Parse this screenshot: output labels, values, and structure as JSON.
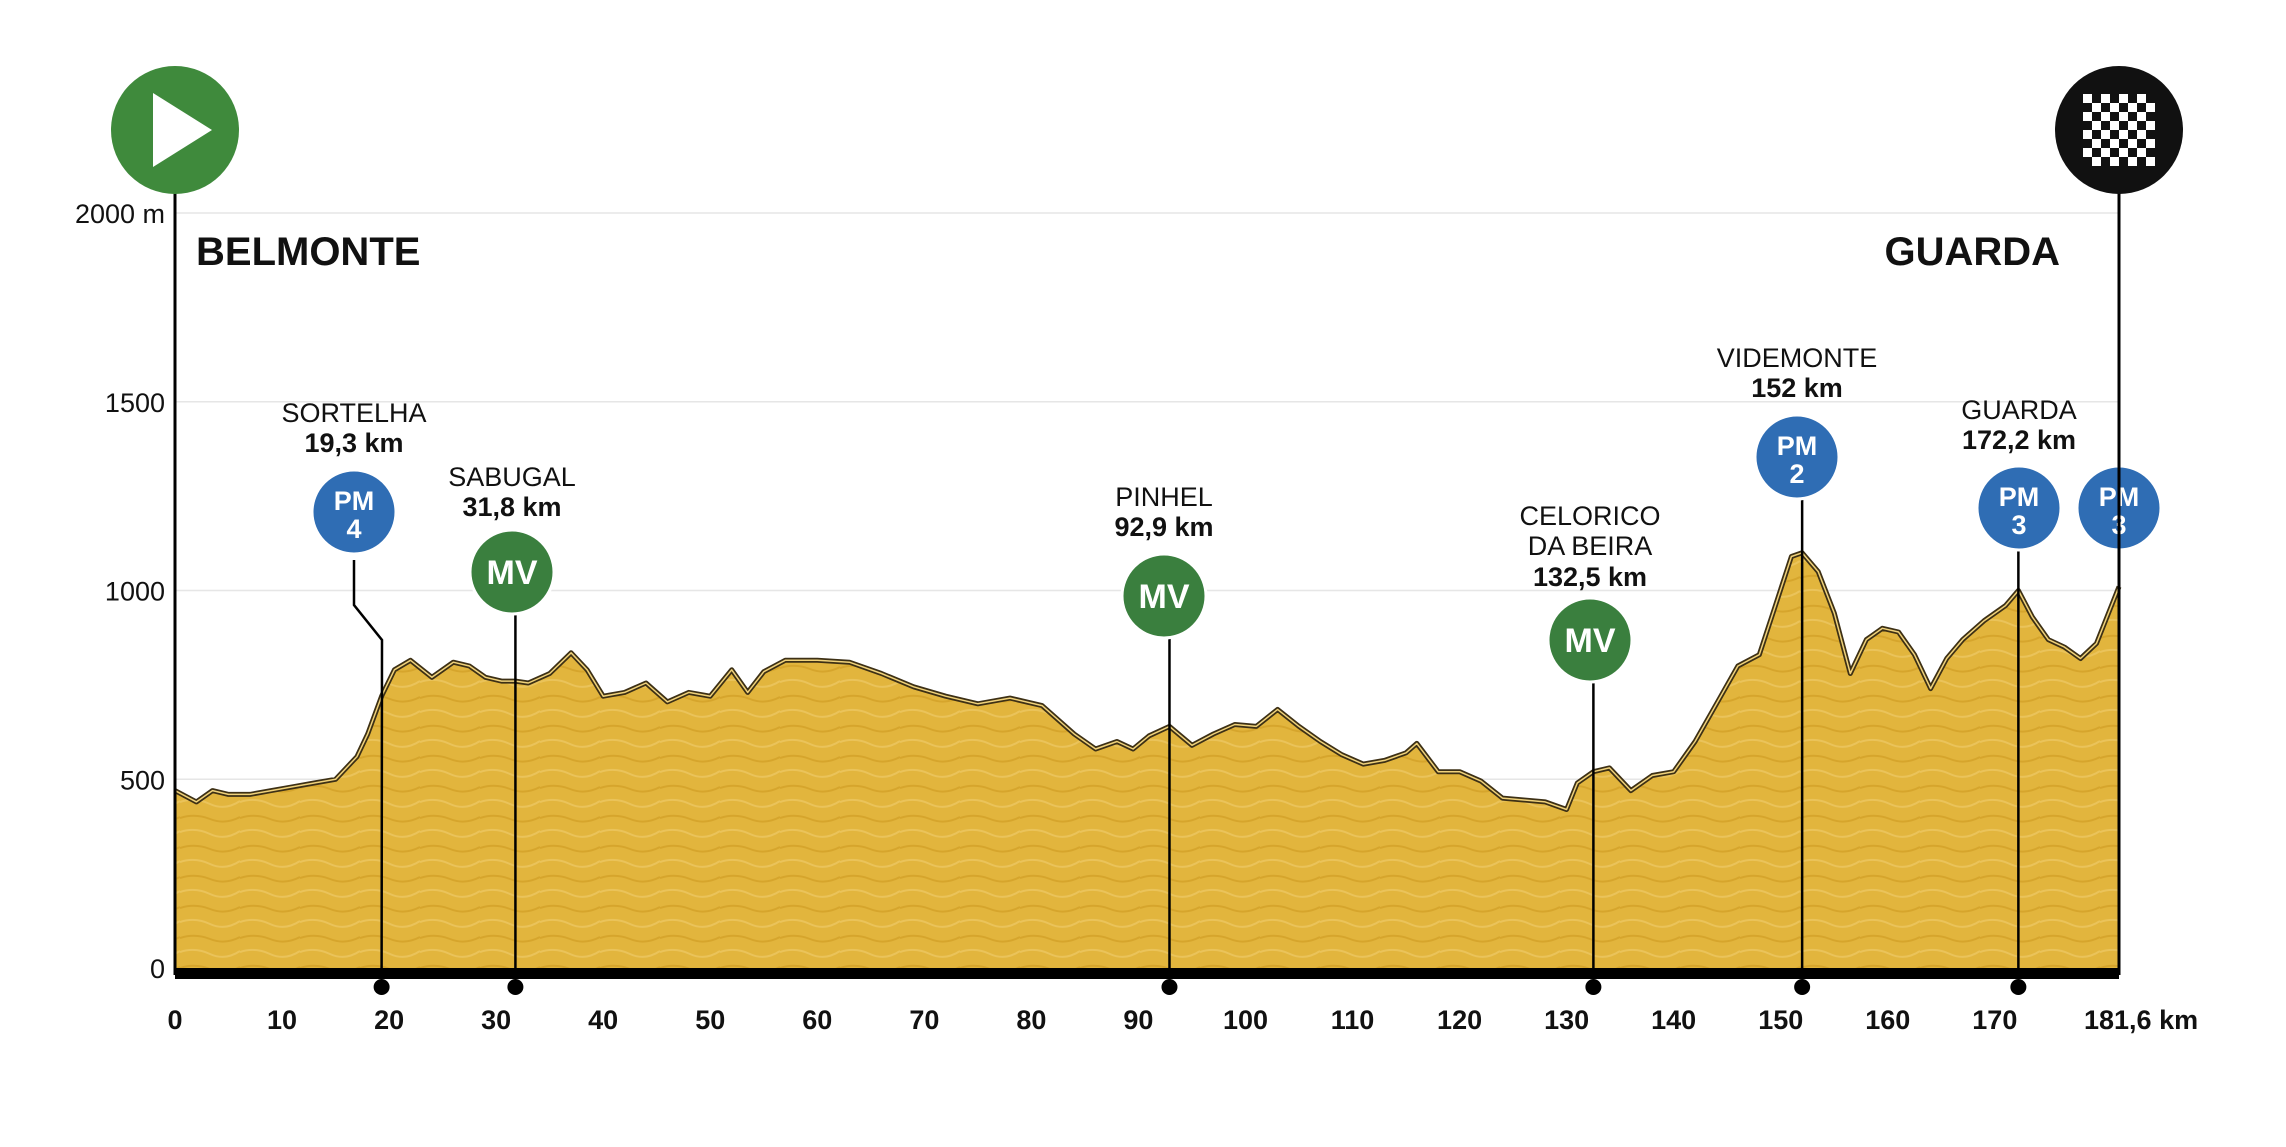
{
  "colors": {
    "fill": "#e2b53d",
    "fill_dark": "#c99a1f",
    "outline": "#3d3015",
    "pm": "#2f6db4",
    "mv": "#3a7f3e",
    "start": "#3f8a3c",
    "finish": "#111111",
    "axis": "#000000",
    "grid": "#e6e6e6"
  },
  "start_city": "BELMONTE",
  "finish_city": "GUARDA",
  "start_icon": "play-icon",
  "finish_icon": "checkered-flag-icon",
  "chart_data": {
    "type": "area",
    "title": "",
    "xlabel": "",
    "ylabel": "",
    "x_unit": "km",
    "y_unit": "m",
    "xlim": [
      0,
      181.6
    ],
    "ylim": [
      0,
      2000
    ],
    "grid": true,
    "y_ticks": [
      "0",
      "500",
      "1000",
      "1500",
      "2000 m"
    ],
    "y_tick_values": [
      0,
      500,
      1000,
      1500,
      2000
    ],
    "x_ticks": [
      "0",
      "10",
      "20",
      "30",
      "40",
      "50",
      "60",
      "70",
      "80",
      "90",
      "100",
      "110",
      "120",
      "130",
      "140",
      "150",
      "160",
      "170",
      "181,6 km"
    ],
    "x_tick_values": [
      0,
      10,
      20,
      30,
      40,
      50,
      60,
      70,
      80,
      90,
      100,
      110,
      120,
      130,
      140,
      150,
      160,
      170,
      181.6
    ],
    "series": [
      {
        "x": [
          0,
          2,
          3.5,
          5,
          7,
          9,
          11,
          13,
          15,
          17,
          18,
          19.3,
          20.5,
          22,
          24,
          26,
          27.5,
          29,
          30.5,
          31.8,
          33,
          35,
          37,
          38.5,
          40,
          42,
          44,
          46,
          48,
          50,
          52,
          53.5,
          55,
          57,
          60,
          63,
          66,
          69,
          72,
          75,
          78,
          81,
          84,
          86,
          88,
          89.5,
          91,
          92.9,
          95,
          97,
          99,
          101,
          103,
          105,
          107,
          109,
          111,
          113,
          115,
          116,
          118,
          120,
          122,
          124,
          126,
          128,
          130,
          131,
          132.5,
          134,
          136,
          138,
          140,
          142,
          144,
          146,
          148,
          149.5,
          151,
          152,
          153.5,
          155,
          156.5,
          158,
          159.5,
          161,
          162.5,
          164,
          165.5,
          167,
          169,
          171,
          172.2,
          173.5,
          175,
          176.5,
          178,
          179.5,
          181.6
        ],
        "y": [
          470,
          440,
          470,
          460,
          460,
          470,
          480,
          490,
          500,
          560,
          620,
          720,
          790,
          815,
          770,
          810,
          800,
          770,
          760,
          760,
          755,
          780,
          835,
          790,
          720,
          730,
          755,
          705,
          730,
          720,
          790,
          730,
          785,
          815,
          815,
          810,
          780,
          745,
          720,
          700,
          715,
          695,
          620,
          580,
          600,
          580,
          615,
          640,
          590,
          620,
          645,
          640,
          685,
          640,
          600,
          565,
          540,
          550,
          570,
          595,
          520,
          520,
          495,
          450,
          445,
          440,
          420,
          490,
          520,
          530,
          470,
          510,
          520,
          600,
          700,
          800,
          830,
          960,
          1090,
          1100,
          1050,
          940,
          780,
          870,
          900,
          890,
          830,
          740,
          820,
          870,
          920,
          960,
          1000,
          930,
          870,
          850,
          820,
          860,
          1010
        ]
      }
    ],
    "checkpoints": [
      {
        "name": "SORTELHA",
        "km_label": "19,3 km",
        "km": 19.3,
        "badge": "PM",
        "cat": "4",
        "color": "pm"
      },
      {
        "name": "SABUGAL",
        "km_label": "31,8 km",
        "km": 31.8,
        "badge": "MV",
        "cat": "",
        "color": "mv"
      },
      {
        "name": "PINHEL",
        "km_label": "92,9 km",
        "km": 92.9,
        "badge": "MV",
        "cat": "",
        "color": "mv"
      },
      {
        "name": "CELORICO DA BEIRA",
        "km_label": "132,5 km",
        "km": 132.5,
        "badge": "MV",
        "cat": "",
        "color": "mv"
      },
      {
        "name": "VIDEMONTE",
        "km_label": "152 km",
        "km": 152,
        "badge": "PM",
        "cat": "2",
        "color": "pm"
      },
      {
        "name": "GUARDA",
        "km_label": "172,2 km",
        "km": 172.2,
        "badge": "PM",
        "cat": "3",
        "color": "pm"
      },
      {
        "name": "",
        "km_label": "",
        "km": 181.6,
        "badge": "PM",
        "cat": "3",
        "color": "pm"
      }
    ]
  }
}
